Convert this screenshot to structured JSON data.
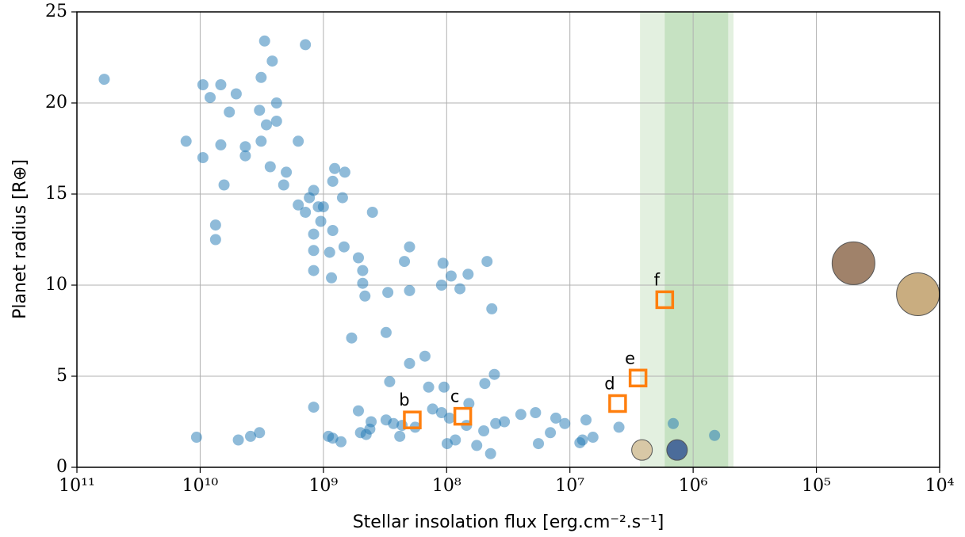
{
  "chart_data": {
    "type": "scatter",
    "xlabel": "Stellar insolation flux [erg.cm⁻².s⁻¹]",
    "ylabel": "Planet radius [R⊕]",
    "xscale": "log",
    "xlim": [
      100000000000.0,
      10000.0
    ],
    "ylim": [
      0,
      25
    ],
    "xticks": [
      {
        "value": 100000000000.0,
        "label": "10¹¹"
      },
      {
        "value": 10000000000.0,
        "label": "10¹⁰"
      },
      {
        "value": 1000000000.0,
        "label": "10⁹"
      },
      {
        "value": 100000000.0,
        "label": "10⁸"
      },
      {
        "value": 10000000.0,
        "label": "10⁷"
      },
      {
        "value": 1000000.0,
        "label": "10⁶"
      },
      {
        "value": 100000.0,
        "label": "10⁵"
      },
      {
        "value": 10000.0,
        "label": "10⁴"
      }
    ],
    "yticks": [
      0,
      5,
      10,
      15,
      20,
      25
    ],
    "grid": true,
    "habitable_zone": {
      "optimistic": [
        2700000.0,
        470000.0
      ],
      "conservative": [
        1700000.0,
        520000.0
      ],
      "colors": [
        "#e3f0e0",
        "#c6e2c2"
      ]
    },
    "series": [
      {
        "color": "#1f77b4",
        "x": [
          60000000000.0,
          13000000000.0,
          9500000000.0,
          9500000000.0,
          8300000000.0,
          6800000000.0,
          6800000000.0,
          6400000000.0,
          5800000000.0,
          5100000000.0,
          7500000000.0,
          7500000000.0,
          4300000000.0,
          4300000000.0,
          3300000000.0,
          3200000000.0,
          3000000000.0,
          3200000000.0,
          2900000000.0,
          2700000000.0,
          2600000000.0,
          2400000000.0,
          2400000000.0,
          2000000000.0,
          2100000000.0,
          1600000000.0,
          1400000000.0,
          1300000000.0,
          1400000000.0,
          1600000000.0,
          1200000000.0,
          1200000000.0,
          1200000000.0,
          1200000000.0,
          1100000000.0,
          1000000000.0,
          1050000000.0,
          890000000.0,
          860000000.0,
          840000000.0,
          810000000.0,
          840000000.0,
          700000000.0,
          670000000.0,
          680000000.0,
          590000000.0,
          520000000.0,
          480000000.0,
          480000000.0,
          460000000.0,
          400000000.0,
          310000000.0,
          300000000.0,
          290000000.0,
          220000000.0,
          200000000.0,
          200000000.0,
          200000000.0,
          150000000.0,
          140000000.0,
          107000000.0,
          110000000.0,
          105000000.0,
          92000000.0,
          78000000.0,
          67000000.0,
          47000000.0,
          43000000.0,
          41000000.0,
          49000000.0,
          66000000.0,
          10700000000.0,
          4900000000.0,
          3900000000.0,
          3300000000.0,
          1200000000.0,
          910000000.0,
          840000000.0,
          720000000.0,
          520000000.0,
          500000000.0,
          450000000.0,
          420000000.0,
          410000000.0,
          310000000.0,
          270000000.0,
          240000000.0,
          230000000.0,
          180000000.0,
          130000000.0,
          110000000.0,
          99000000.0,
          95000000.0,
          85000000.0,
          69000000.0,
          57000000.0,
          50000000.0,
          44000000.0,
          40000000.0,
          34000000.0,
          25000000.0,
          19000000.0,
          18000000.0,
          14400000.0,
          13000000.0,
          11000000.0,
          8300000.0,
          7900000.0,
          7400000.0,
          6500000.0,
          4000000.0,
          1450000.0,
          670000.0
        ],
        "y": [
          21.3,
          17.9,
          21.0,
          17.0,
          20.3,
          21.0,
          17.7,
          15.5,
          19.5,
          20.5,
          13.3,
          12.5,
          17.6,
          17.1,
          19.6,
          21.4,
          23.4,
          17.9,
          18.8,
          16.5,
          22.3,
          19.0,
          20.0,
          16.2,
          15.5,
          17.9,
          23.2,
          14.8,
          14.0,
          14.4,
          15.2,
          12.8,
          11.9,
          10.8,
          14.3,
          14.3,
          13.5,
          11.8,
          10.4,
          13.0,
          16.4,
          15.7,
          14.8,
          16.2,
          12.1,
          7.1,
          11.5,
          10.8,
          10.1,
          9.4,
          14.0,
          7.4,
          9.6,
          4.7,
          11.3,
          12.1,
          9.7,
          5.7,
          6.1,
          4.4,
          11.2,
          10.0,
          4.4,
          10.5,
          9.8,
          10.6,
          11.3,
          8.7,
          5.1,
          4.6,
          3.5,
          1.65,
          1.5,
          1.7,
          1.9,
          3.3,
          1.7,
          1.6,
          1.4,
          3.1,
          1.9,
          1.8,
          2.1,
          2.5,
          2.6,
          2.4,
          1.7,
          2.3,
          2.2,
          3.2,
          3.0,
          1.3,
          2.7,
          1.5,
          2.3,
          1.2,
          2.0,
          0.75,
          2.4,
          2.5,
          2.9,
          3.0,
          1.3,
          1.9,
          2.7,
          2.4,
          1.35,
          1.5,
          2.6,
          1.65,
          2.2,
          2.4,
          1.75
        ]
      },
      {
        "color": "#ff7f0e",
        "x": [
          190000000.0,
          74000000.0,
          4100000.0,
          2800000.0,
          1700000.0
        ],
        "y": [
          2.6,
          2.8,
          3.5,
          4.9,
          9.2
        ],
        "labels": [
          "b",
          "c",
          "d",
          "e",
          "f"
        ]
      }
    ],
    "solar_system": {
      "x": [
        50000.0,
        15000.0,
        2600000.0,
        1350000.0
      ],
      "y": [
        11.2,
        9.5,
        0.95,
        0.95
      ],
      "colors": [
        "#a0826a",
        "#c9ad80",
        "#d8c8a6",
        "#4b6c9a"
      ]
    }
  }
}
